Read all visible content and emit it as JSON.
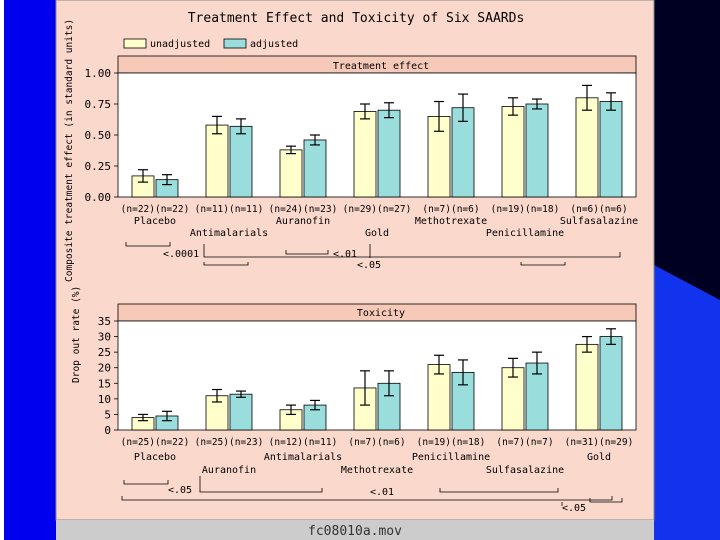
{
  "title": "Treatment Effect and Toxicity of Six SAARDs",
  "footer": "fc08010a.mov",
  "legend": [
    {
      "label": "unadjusted",
      "color": "#ffffcc"
    },
    {
      "label": "adjusted",
      "color": "#99dddd"
    }
  ],
  "colors": {
    "panel": "#fbd8cc",
    "header": "#f7c9b8",
    "frame": "#0000ee",
    "plot_bg": "#ffffff"
  },
  "chart_data": [
    {
      "type": "bar",
      "title": "Treatment effect",
      "ylabel": "Composite treatment effect (in standard units)",
      "ylim": [
        0,
        1.0
      ],
      "yticks": [
        "0.00",
        "0.25",
        "0.50",
        "0.75",
        "1.00"
      ],
      "categories": [
        "Placebo",
        "Antimalarials",
        "Auranofin",
        "Gold",
        "Methotrexate",
        "Penicillamine",
        "Sulfasalazine"
      ],
      "n_labels": [
        "(n=22)(n=22)",
        "(n=11)(n=11)",
        "(n=24)(n=23)",
        "(n=29)(n=27)",
        "(n=7)(n=6)",
        "(n=19)(n=18)",
        "(n=6)(n=6)"
      ],
      "series": [
        {
          "name": "unadjusted",
          "values": [
            0.17,
            0.58,
            0.38,
            0.69,
            0.65,
            0.73,
            0.8
          ],
          "err": [
            0.05,
            0.07,
            0.03,
            0.06,
            0.12,
            0.07,
            0.1
          ]
        },
        {
          "name": "adjusted",
          "values": [
            0.14,
            0.57,
            0.46,
            0.7,
            0.72,
            0.75,
            0.77
          ],
          "err": [
            0.04,
            0.06,
            0.04,
            0.06,
            0.11,
            0.04,
            0.07
          ]
        }
      ],
      "significance": [
        "<.0001",
        "<.01",
        "<.05"
      ]
    },
    {
      "type": "bar",
      "title": "Toxicity",
      "ylabel": "Drop out rate (%)",
      "ylim": [
        0,
        35
      ],
      "yticks": [
        "0",
        "5",
        "10",
        "15",
        "20",
        "25",
        "30",
        "35"
      ],
      "categories": [
        "Placebo",
        "Auranofin",
        "Antimalarials",
        "Methotrexate",
        "Penicillamine",
        "Sulfasalazine",
        "Gold"
      ],
      "n_labels": [
        "(n=25)(n=22)",
        "(n=25)(n=23)",
        "(n=12)(n=11)",
        "(n=7)(n=6)",
        "(n=19)(n=18)",
        "(n=7)(n=7)",
        "(n=31)(n=29)"
      ],
      "series": [
        {
          "name": "unadjusted",
          "values": [
            4,
            11,
            6.5,
            13.5,
            21,
            20,
            27.5
          ],
          "err": [
            1.0,
            2.0,
            1.5,
            5.5,
            3.0,
            3.0,
            2.5
          ]
        },
        {
          "name": "adjusted",
          "values": [
            4.5,
            11.5,
            8,
            15,
            18.5,
            21.5,
            30
          ],
          "err": [
            1.5,
            1.0,
            1.5,
            4.0,
            4.0,
            3.5,
            2.5
          ]
        }
      ],
      "significance": [
        "<.05",
        "<.01",
        "<.05"
      ]
    }
  ]
}
